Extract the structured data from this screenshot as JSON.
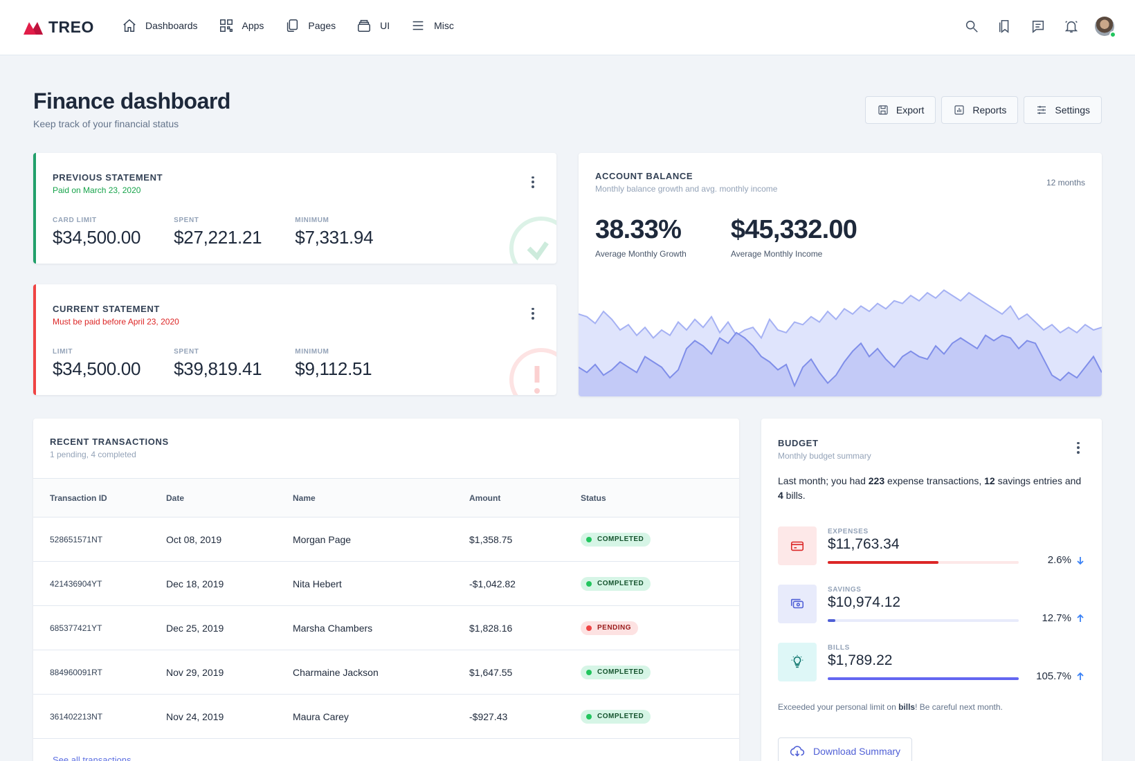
{
  "app": {
    "logo_text": "TREO"
  },
  "nav": [
    {
      "label": "Dashboards",
      "icon": "home-icon"
    },
    {
      "label": "Apps",
      "icon": "qr-grid-icon"
    },
    {
      "label": "Pages",
      "icon": "pages-icon"
    },
    {
      "label": "UI",
      "icon": "layers-icon"
    },
    {
      "label": "Misc",
      "icon": "menu-icon"
    }
  ],
  "header": {
    "title": "Finance dashboard",
    "subtitle": "Keep track of your financial status",
    "actions": [
      "Export",
      "Reports",
      "Settings"
    ]
  },
  "previous_statement": {
    "title": "Previous Statement",
    "subtitle": "Paid on March 23, 2020",
    "accent": "#22a06b",
    "stats": [
      {
        "label": "Card Limit",
        "value": "$34,500.00"
      },
      {
        "label": "Spent",
        "value": "$27,221.21"
      },
      {
        "label": "Minimum",
        "value": "$7,331.94"
      }
    ]
  },
  "current_statement": {
    "title": "Current Statement",
    "subtitle": "Must be paid before April 23, 2020",
    "accent": "#ef4444",
    "stats": [
      {
        "label": "Limit",
        "value": "$34,500.00"
      },
      {
        "label": "Spent",
        "value": "$39,819.41"
      },
      {
        "label": "Minimum",
        "value": "$9,112.51"
      }
    ]
  },
  "account_balance": {
    "title": "Account Balance",
    "subtitle": "Monthly balance growth and avg. monthly income",
    "period": "12 months",
    "growth_value": "38.33%",
    "growth_label": "Average Monthly Growth",
    "income_value": "$45,332.00",
    "income_label": "Average Monthly Income"
  },
  "chart_data": {
    "type": "area",
    "title": "Account Balance",
    "series": [
      {
        "name": "",
        "values": [
          62,
          60,
          55,
          64,
          58,
          50,
          54,
          46,
          52,
          44,
          50,
          46,
          56,
          50,
          58,
          52,
          60,
          48,
          56,
          46,
          50,
          52,
          44,
          58,
          50,
          48,
          56,
          54,
          60,
          56,
          64,
          58,
          66,
          62,
          68,
          64,
          70,
          66,
          72,
          70,
          76,
          72,
          78,
          74,
          80,
          76,
          72,
          78,
          74,
          70,
          66,
          62,
          68,
          58,
          62,
          56,
          50,
          54,
          48,
          52,
          48,
          54,
          50,
          52
        ]
      },
      {
        "name": "",
        "values": [
          22,
          18,
          24,
          16,
          20,
          26,
          22,
          18,
          30,
          26,
          22,
          14,
          20,
          36,
          42,
          38,
          32,
          44,
          40,
          48,
          44,
          38,
          30,
          26,
          20,
          24,
          8,
          22,
          28,
          18,
          10,
          16,
          26,
          34,
          40,
          30,
          36,
          28,
          22,
          30,
          34,
          30,
          28,
          38,
          32,
          40,
          44,
          40,
          36,
          46,
          42,
          46,
          44,
          36,
          42,
          40,
          28,
          16,
          12,
          18,
          14,
          22,
          30,
          18
        ]
      }
    ]
  },
  "transactions": {
    "title": "Recent Transactions",
    "subtitle": "1 pending, 4 completed",
    "columns": [
      "Transaction ID",
      "Date",
      "Name",
      "Amount",
      "Status"
    ],
    "rows": [
      {
        "id": "528651571NT",
        "date": "Oct 08, 2019",
        "name": "Morgan Page",
        "amount": "$1,358.75",
        "status": "COMPLETED"
      },
      {
        "id": "421436904YT",
        "date": "Dec 18, 2019",
        "name": "Nita Hebert",
        "amount": "-$1,042.82",
        "status": "COMPLETED"
      },
      {
        "id": "685377421YT",
        "date": "Dec 25, 2019",
        "name": "Marsha Chambers",
        "amount": "$1,828.16",
        "status": "PENDING"
      },
      {
        "id": "884960091RT",
        "date": "Nov 29, 2019",
        "name": "Charmaine Jackson",
        "amount": "$1,647.55",
        "status": "COMPLETED"
      },
      {
        "id": "361402213NT",
        "date": "Nov 24, 2019",
        "name": "Maura Carey",
        "amount": "-$927.43",
        "status": "COMPLETED"
      }
    ],
    "see_all": "See all transactions"
  },
  "budget": {
    "title": "Budget",
    "subtitle": "Monthly budget summary",
    "text_1": "Last month; you had ",
    "expense_count": "223",
    "text_2": " expense transactions, ",
    "savings_count": "12",
    "text_3": " savings entries and ",
    "bills_count": "4",
    "text_4": " bills.",
    "items": [
      {
        "label": "EXPENSES",
        "value": "$11,763.34",
        "percent": "2.6%",
        "direction": "down",
        "fill": 0.58,
        "icon": "credit-card-icon",
        "color": "#dc2626",
        "bg": "#fde8e8"
      },
      {
        "label": "SAVINGS",
        "value": "$10,974.12",
        "percent": "12.7%",
        "direction": "up",
        "fill": 0.04,
        "icon": "cash-icon",
        "color": "#4f5fd6",
        "bg": "#e8ebfb"
      },
      {
        "label": "BILLS",
        "value": "$1,789.22",
        "percent": "105.7%",
        "direction": "up",
        "fill": 1.0,
        "icon": "lightbulb-icon",
        "color": "#6366f1",
        "bg": "#def7f7"
      }
    ],
    "note_1": "Exceeded your personal limit on ",
    "note_bold": "bills",
    "note_2": "! Be careful next month.",
    "download": "Download Summary"
  }
}
